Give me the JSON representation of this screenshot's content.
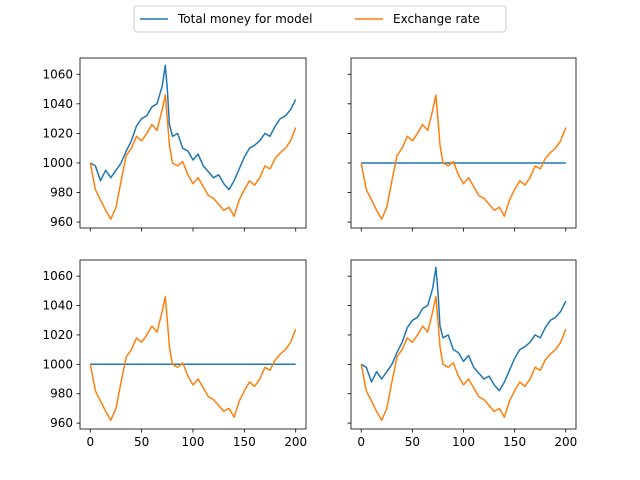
{
  "chart_data": {
    "type": "line",
    "layout": "2x2 subplots, shared x and y axes",
    "legend": {
      "placement": "top-center",
      "columns": 2,
      "entries": [
        {
          "label": "Total money for model",
          "color": "#1f77b4"
        },
        {
          "label": "Exchange rate",
          "color": "#ff7f0e"
        }
      ]
    },
    "xlim": [
      -10,
      210
    ],
    "ylim": [
      956,
      1071
    ],
    "xticks": [
      0,
      50,
      100,
      150,
      200
    ],
    "yticks": [
      960,
      980,
      1000,
      1020,
      1040,
      1060
    ],
    "x": [
      0,
      5,
      10,
      15,
      20,
      25,
      30,
      35,
      40,
      45,
      50,
      55,
      60,
      65,
      70,
      73,
      75,
      77,
      80,
      85,
      90,
      95,
      100,
      105,
      110,
      115,
      120,
      125,
      130,
      135,
      140,
      145,
      150,
      155,
      160,
      165,
      170,
      175,
      180,
      185,
      190,
      195,
      200
    ],
    "exchange_rate": [
      1000,
      982,
      975,
      968,
      962,
      970,
      988,
      1005,
      1010,
      1018,
      1015,
      1020,
      1026,
      1022,
      1036,
      1046,
      1030,
      1012,
      1000,
      998,
      1001,
      992,
      986,
      990,
      984,
      978,
      976,
      972,
      968,
      970,
      964,
      975,
      982,
      988,
      985,
      990,
      998,
      996,
      1003,
      1007,
      1010,
      1015,
      1024
    ],
    "total_money": [
      1000,
      998,
      988,
      995,
      990,
      995,
      1000,
      1008,
      1015,
      1025,
      1030,
      1032,
      1038,
      1040,
      1052,
      1066,
      1050,
      1026,
      1018,
      1020,
      1010,
      1008,
      1002,
      1006,
      998,
      994,
      990,
      992,
      986,
      982,
      988,
      996,
      1004,
      1010,
      1012,
      1015,
      1020,
      1018,
      1025,
      1030,
      1032,
      1036,
      1043
    ],
    "panels": [
      {
        "position": "top-left",
        "series": [
          "total_money",
          "exchange_rate"
        ],
        "show_xticklabels": false,
        "show_yticklabels": true
      },
      {
        "position": "top-right",
        "series": [
          "constant_1000",
          "exchange_rate"
        ],
        "show_xticklabels": false,
        "show_yticklabels": false
      },
      {
        "position": "bottom-left",
        "series": [
          "constant_1000",
          "exchange_rate"
        ],
        "show_xticklabels": true,
        "show_yticklabels": true
      },
      {
        "position": "bottom-right",
        "series": [
          "total_money",
          "exchange_rate"
        ],
        "show_xticklabels": true,
        "show_yticklabels": false
      }
    ],
    "constant_1000": 1000
  }
}
